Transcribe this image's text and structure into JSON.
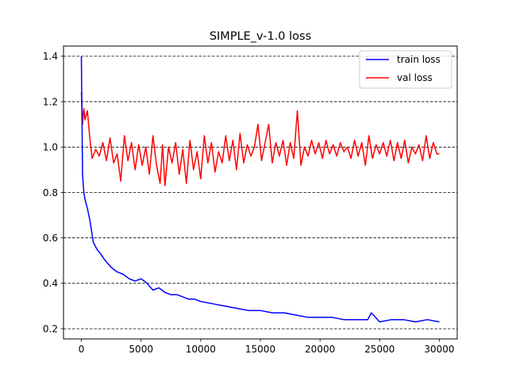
{
  "chart_data": {
    "type": "line",
    "title": "SIMPLE_v-1.0 loss",
    "xlabel": "",
    "ylabel": "",
    "xlim": [
      -1500,
      31500
    ],
    "ylim": [
      0.155,
      1.445
    ],
    "xticks": [
      0,
      5000,
      10000,
      15000,
      20000,
      25000,
      30000
    ],
    "xtick_labels": [
      "0",
      "5000",
      "10000",
      "15000",
      "20000",
      "25000",
      "30000"
    ],
    "yticks": [
      0.2,
      0.4,
      0.6,
      0.8,
      1.0,
      1.2,
      1.4
    ],
    "ytick_labels": [
      "0.2",
      "0.4",
      "0.6",
      "0.8",
      "1.0",
      "1.2",
      "1.4"
    ],
    "grid": "horizontal dashed",
    "legend_position": "upper right",
    "series": [
      {
        "name": "train loss",
        "color": "#0000ff",
        "x": [
          0,
          100,
          200,
          300,
          500,
          700,
          1000,
          1300,
          1600,
          2000,
          2500,
          3000,
          3500,
          4000,
          4500,
          5000,
          5500,
          6000,
          6500,
          7000,
          7500,
          8000,
          8500,
          9000,
          9500,
          10000,
          11000,
          12000,
          13000,
          14000,
          15000,
          16000,
          17000,
          18000,
          19000,
          20000,
          21000,
          22000,
          23000,
          24000,
          24300,
          25000,
          26000,
          27000,
          28000,
          29000,
          30000
        ],
        "y": [
          1.4,
          0.88,
          0.8,
          0.77,
          0.73,
          0.68,
          0.58,
          0.55,
          0.53,
          0.5,
          0.47,
          0.45,
          0.44,
          0.42,
          0.41,
          0.42,
          0.4,
          0.37,
          0.38,
          0.36,
          0.35,
          0.35,
          0.34,
          0.33,
          0.33,
          0.32,
          0.31,
          0.3,
          0.29,
          0.28,
          0.28,
          0.27,
          0.27,
          0.26,
          0.25,
          0.25,
          0.25,
          0.24,
          0.24,
          0.24,
          0.27,
          0.23,
          0.24,
          0.24,
          0.23,
          0.24,
          0.23
        ]
      },
      {
        "name": "val loss",
        "color": "#ff0000",
        "x": [
          0,
          100,
          200,
          300,
          500,
          700,
          900,
          1200,
          1500,
          1800,
          2100,
          2400,
          2700,
          3000,
          3300,
          3600,
          3900,
          4200,
          4500,
          4800,
          5100,
          5400,
          5700,
          6000,
          6300,
          6600,
          6800,
          7000,
          7300,
          7600,
          7900,
          8200,
          8500,
          8800,
          9100,
          9400,
          9700,
          10000,
          10300,
          10600,
          10900,
          11200,
          11500,
          11800,
          12100,
          12400,
          12700,
          13000,
          13300,
          13600,
          13900,
          14200,
          14500,
          14800,
          15100,
          15400,
          15700,
          16000,
          16300,
          16600,
          16900,
          17200,
          17500,
          17800,
          18100,
          18400,
          18700,
          19000,
          19300,
          19600,
          19900,
          20200,
          20500,
          20800,
          21100,
          21400,
          21700,
          22000,
          22300,
          22600,
          22900,
          23200,
          23500,
          23800,
          24100,
          24400,
          24700,
          25000,
          25300,
          25600,
          25900,
          26200,
          26500,
          26800,
          27100,
          27400,
          27700,
          28000,
          28300,
          28600,
          28900,
          29200,
          29500,
          29800,
          30000
        ],
        "y": [
          1.24,
          1.1,
          1.17,
          1.12,
          1.16,
          1.04,
          0.95,
          0.99,
          0.96,
          1.02,
          0.94,
          1.04,
          0.93,
          0.97,
          0.85,
          1.05,
          0.94,
          1.02,
          0.9,
          1.01,
          0.92,
          1.0,
          0.88,
          1.05,
          0.92,
          0.84,
          1.01,
          0.83,
          1.0,
          0.93,
          1.02,
          0.88,
          0.99,
          0.84,
          1.03,
          0.9,
          0.98,
          0.86,
          1.05,
          0.93,
          1.02,
          0.89,
          0.98,
          0.93,
          1.05,
          0.94,
          1.03,
          0.9,
          1.06,
          0.93,
          1.01,
          0.96,
          1.0,
          1.1,
          0.94,
          1.02,
          1.1,
          0.93,
          1.02,
          0.96,
          1.03,
          0.92,
          1.02,
          0.95,
          1.16,
          0.92,
          1.0,
          0.96,
          1.03,
          0.97,
          1.02,
          0.95,
          1.03,
          0.97,
          1.01,
          0.96,
          1.02,
          0.98,
          1.0,
          0.95,
          1.03,
          0.96,
          1.02,
          0.92,
          1.05,
          0.95,
          1.01,
          0.97,
          1.02,
          0.96,
          1.03,
          0.94,
          1.02,
          0.95,
          1.03,
          0.93,
          1.0,
          0.97,
          1.01,
          0.94,
          1.05,
          0.95,
          1.02,
          0.97,
          0.97
        ]
      }
    ]
  }
}
